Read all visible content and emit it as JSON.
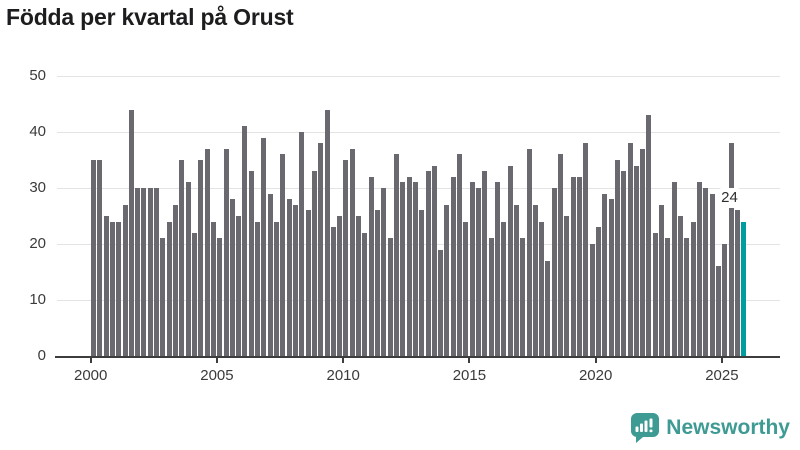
{
  "title": "Födda per kvartal på Orust",
  "chart_data": {
    "type": "bar",
    "title": "Födda per kvartal på Orust",
    "x_start": "2000 Q1",
    "x_end": "2025 Q4",
    "quarters_per_year": 4,
    "values": [
      35,
      35,
      25,
      24,
      24,
      27,
      44,
      30,
      30,
      30,
      30,
      21,
      24,
      27,
      35,
      31,
      22,
      35,
      37,
      24,
      21,
      37,
      28,
      25,
      41,
      33,
      24,
      39,
      29,
      24,
      36,
      28,
      27,
      40,
      26,
      33,
      38,
      44,
      23,
      25,
      35,
      37,
      25,
      22,
      32,
      26,
      30,
      21,
      36,
      31,
      32,
      31,
      26,
      33,
      34,
      19,
      27,
      32,
      36,
      24,
      31,
      30,
      33,
      21,
      31,
      24,
      34,
      27,
      21,
      37,
      27,
      24,
      17,
      30,
      36,
      25,
      32,
      32,
      38,
      20,
      23,
      29,
      28,
      35,
      33,
      38,
      34,
      37,
      43,
      22,
      27,
      21,
      31,
      25,
      21,
      24,
      31,
      30,
      29,
      16,
      20,
      38,
      26,
      24
    ],
    "ylim": [
      0,
      50
    ],
    "yticks": [
      0,
      10,
      20,
      30,
      40,
      50
    ],
    "xtick_labels": [
      "2000",
      "2005",
      "2010",
      "2015",
      "2020",
      "2025"
    ],
    "grid": true,
    "legend": "none",
    "bar_color": "#69696f",
    "highlight_color": "#009da0",
    "highlight_index": 103,
    "annotation": {
      "text": "24",
      "target": "2025 Q4"
    }
  },
  "footer": {
    "brand": "Newsworthy",
    "logo_color": "#3d9b93"
  }
}
